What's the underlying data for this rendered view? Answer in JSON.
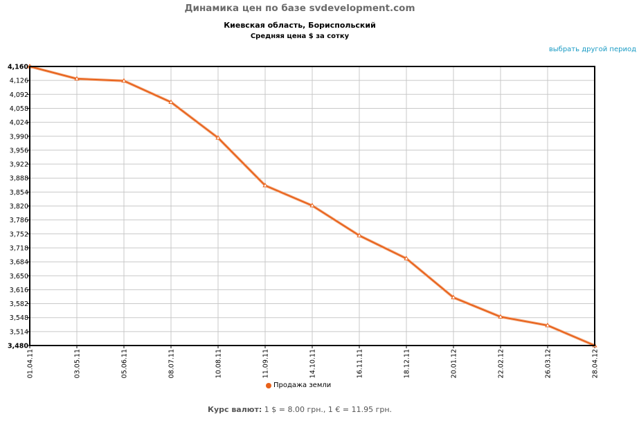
{
  "header": {
    "site_title": "Динамика цен по базе svdevelopment.com",
    "period_link": "выбрать другой период"
  },
  "chart_data": {
    "type": "line",
    "title": "Киевская область, Бориспольский",
    "subtitle": "Средняя цена $ за сотку",
    "xlabel": "",
    "ylabel": "",
    "ylim": [
      3480,
      4160
    ],
    "ytick_step": 34,
    "categories": [
      "01.04.11",
      "03.05.11",
      "05.06.11",
      "08.07.11",
      "10.08.11",
      "11.09.11",
      "14.10.11",
      "16.11.11",
      "18.12.11",
      "20.01.12",
      "22.02.12",
      "26.03.12",
      "28.04.12"
    ],
    "series": [
      {
        "name": "Продажа земли",
        "values": [
          4160,
          4130,
          4125,
          4073,
          3986,
          3870,
          3821,
          3748,
          3692,
          3597,
          3550,
          3529,
          3480
        ]
      }
    ],
    "line_color": "#e8611a",
    "grid": true,
    "legend_position": "bottom-center"
  },
  "footer": {
    "label": "Курс валют:",
    "rates": "1 $ = 8.00 грн., 1 € = 11.95 грн."
  }
}
